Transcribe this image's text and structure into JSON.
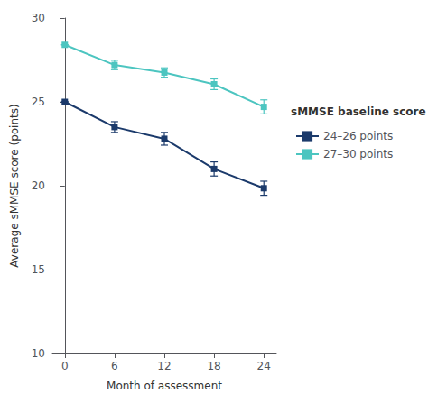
{
  "chart_data": {
    "type": "line",
    "x": [
      0,
      6,
      12,
      18,
      24
    ],
    "series": [
      {
        "name": "24–26 points",
        "color": "#1b3a6b",
        "marker": "square",
        "values": [
          25.0,
          23.5,
          22.8,
          21.0,
          19.85
        ],
        "yerr": [
          0.0,
          0.32,
          0.38,
          0.42,
          0.42
        ]
      },
      {
        "name": "27–30 points",
        "color": "#4cc5c0",
        "marker": "square",
        "values": [
          28.4,
          27.2,
          26.75,
          26.05,
          24.7
        ],
        "yerr": [
          0.0,
          0.28,
          0.28,
          0.32,
          0.42
        ]
      }
    ],
    "xlabel": "Month of assessment",
    "ylabel": "Average sMMSE score (points)",
    "legend_title": "sMMSE baseline score",
    "xlim": [
      -1.5,
      25.5
    ],
    "xticks": [
      0,
      6,
      12,
      18,
      24
    ],
    "ylim": [
      10,
      30
    ],
    "yticks": [
      10,
      15,
      20,
      25,
      30
    ],
    "grid": false,
    "legend": "right"
  }
}
